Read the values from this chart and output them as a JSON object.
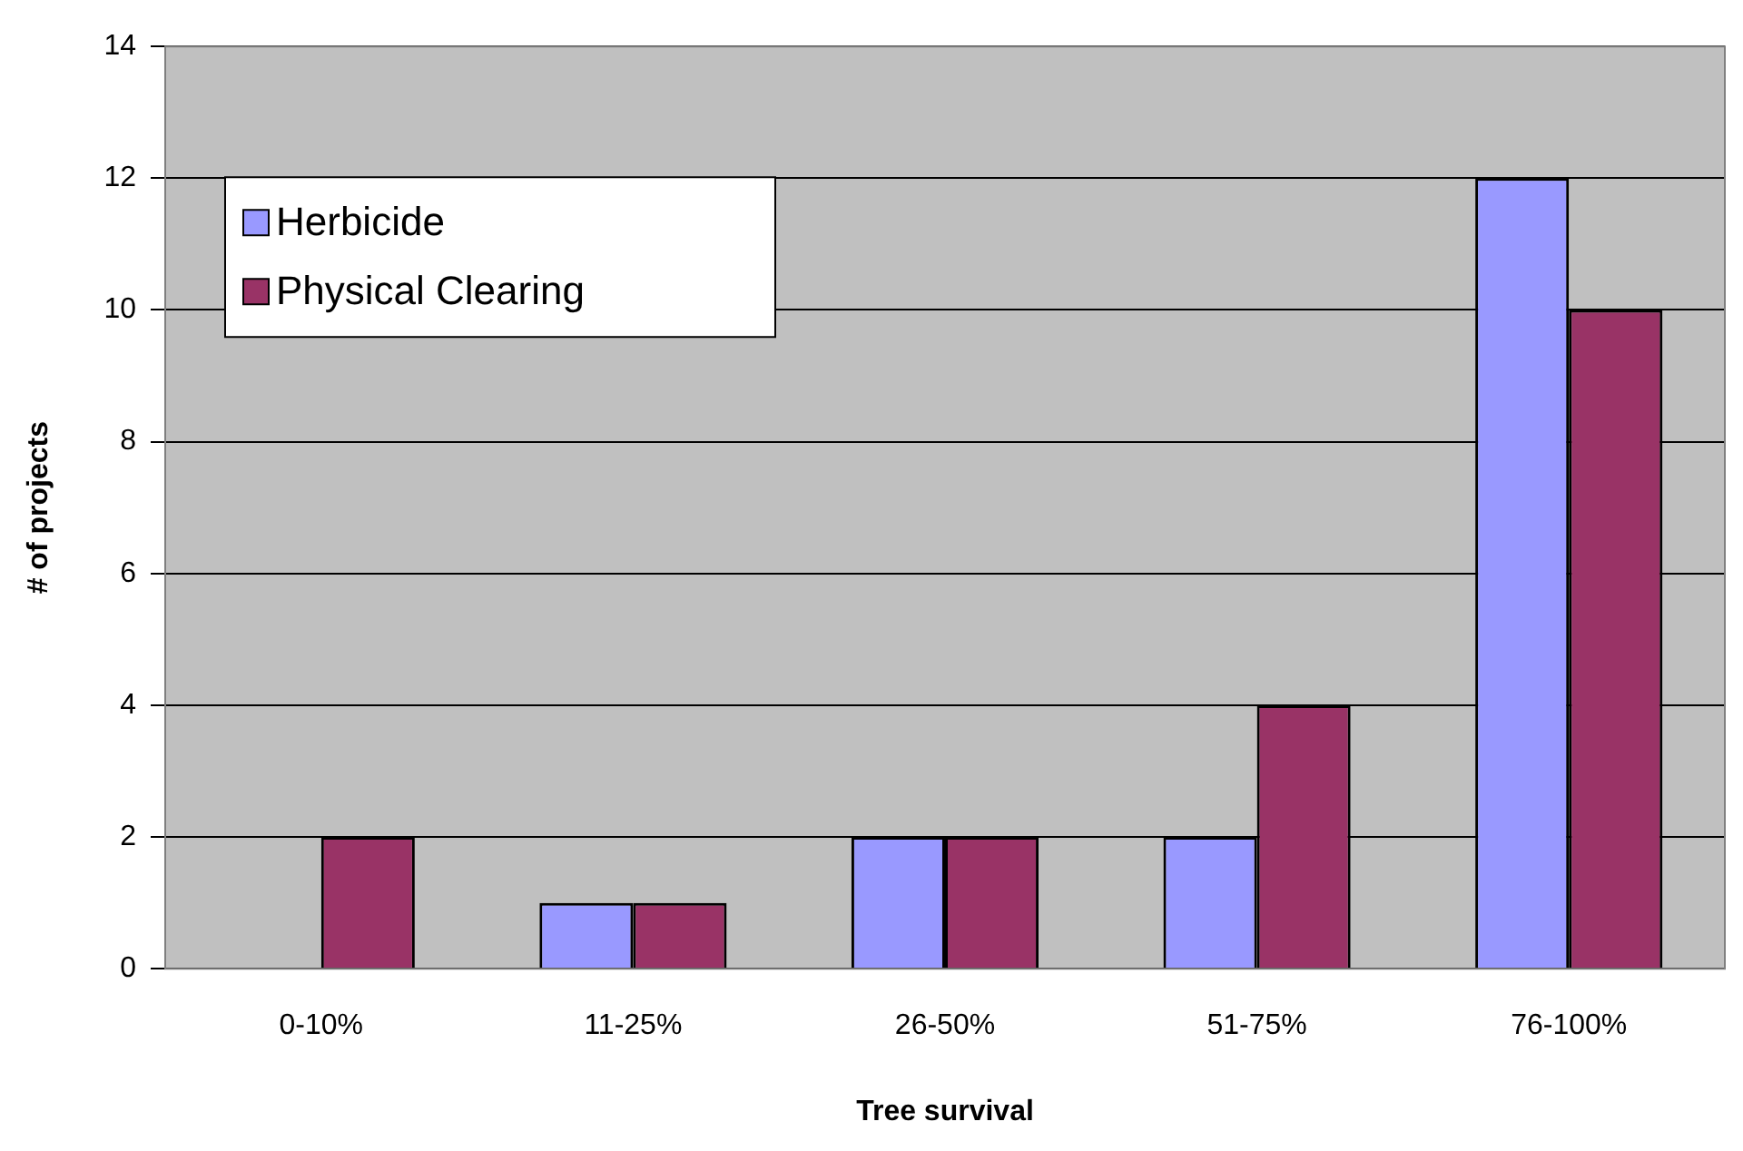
{
  "chart_data": {
    "type": "bar",
    "xlabel": "Tree survival",
    "ylabel": "# of projects",
    "categories": [
      "0-10%",
      "11-25%",
      "26-50%",
      "51-75%",
      "76-100%"
    ],
    "series": [
      {
        "name": "Herbicide",
        "color": "#9999ff",
        "values": [
          0,
          1,
          2,
          2,
          12
        ]
      },
      {
        "name": "Physical Clearing",
        "color": "#993366",
        "values": [
          2,
          1,
          2,
          4,
          10
        ]
      }
    ],
    "ylim": [
      0,
      14
    ],
    "yticks": [
      0,
      2,
      4,
      6,
      8,
      10,
      12,
      14
    ],
    "grid": "y",
    "legend": "top left"
  }
}
